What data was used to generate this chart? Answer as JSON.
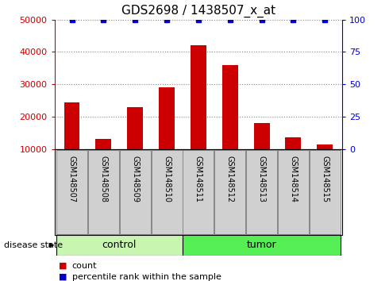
{
  "title": "GDS2698 / 1438507_x_at",
  "samples": [
    "GSM148507",
    "GSM148508",
    "GSM148509",
    "GSM148510",
    "GSM148511",
    "GSM148512",
    "GSM148513",
    "GSM148514",
    "GSM148515"
  ],
  "counts": [
    24500,
    13000,
    23000,
    29000,
    42000,
    36000,
    18000,
    13500,
    11500
  ],
  "percentile_ranks": [
    100,
    100,
    100,
    100,
    100,
    100,
    100,
    100,
    100
  ],
  "ylim_left": [
    10000,
    50000
  ],
  "ylim_right": [
    0,
    100
  ],
  "yticks_left": [
    10000,
    20000,
    30000,
    40000,
    50000
  ],
  "yticks_right": [
    0,
    25,
    50,
    75,
    100
  ],
  "groups": [
    {
      "label": "control",
      "indices": [
        0,
        1,
        2,
        3
      ],
      "color": "#c8f5b0",
      "edge_color": "#000000"
    },
    {
      "label": "tumor",
      "indices": [
        4,
        5,
        6,
        7,
        8
      ],
      "color": "#55ee55",
      "edge_color": "#000000"
    }
  ],
  "bar_color": "#cc0000",
  "scatter_color": "#0000cc",
  "bar_width": 0.5,
  "title_fontsize": 11,
  "tick_fontsize": 8,
  "label_fontsize": 8,
  "group_label_fontsize": 9,
  "disease_state_label": "disease state",
  "legend_count_label": "count",
  "legend_percentile_label": "percentile rank within the sample",
  "background_color": "#ffffff",
  "plot_bg_color": "#ffffff",
  "grid_color": "#888888",
  "left_axis_color": "#cc0000",
  "right_axis_color": "#0000cc",
  "xticklabel_bg": "#d0d0d0",
  "xticklabel_edge": "#888888",
  "spine_color": "#000000"
}
